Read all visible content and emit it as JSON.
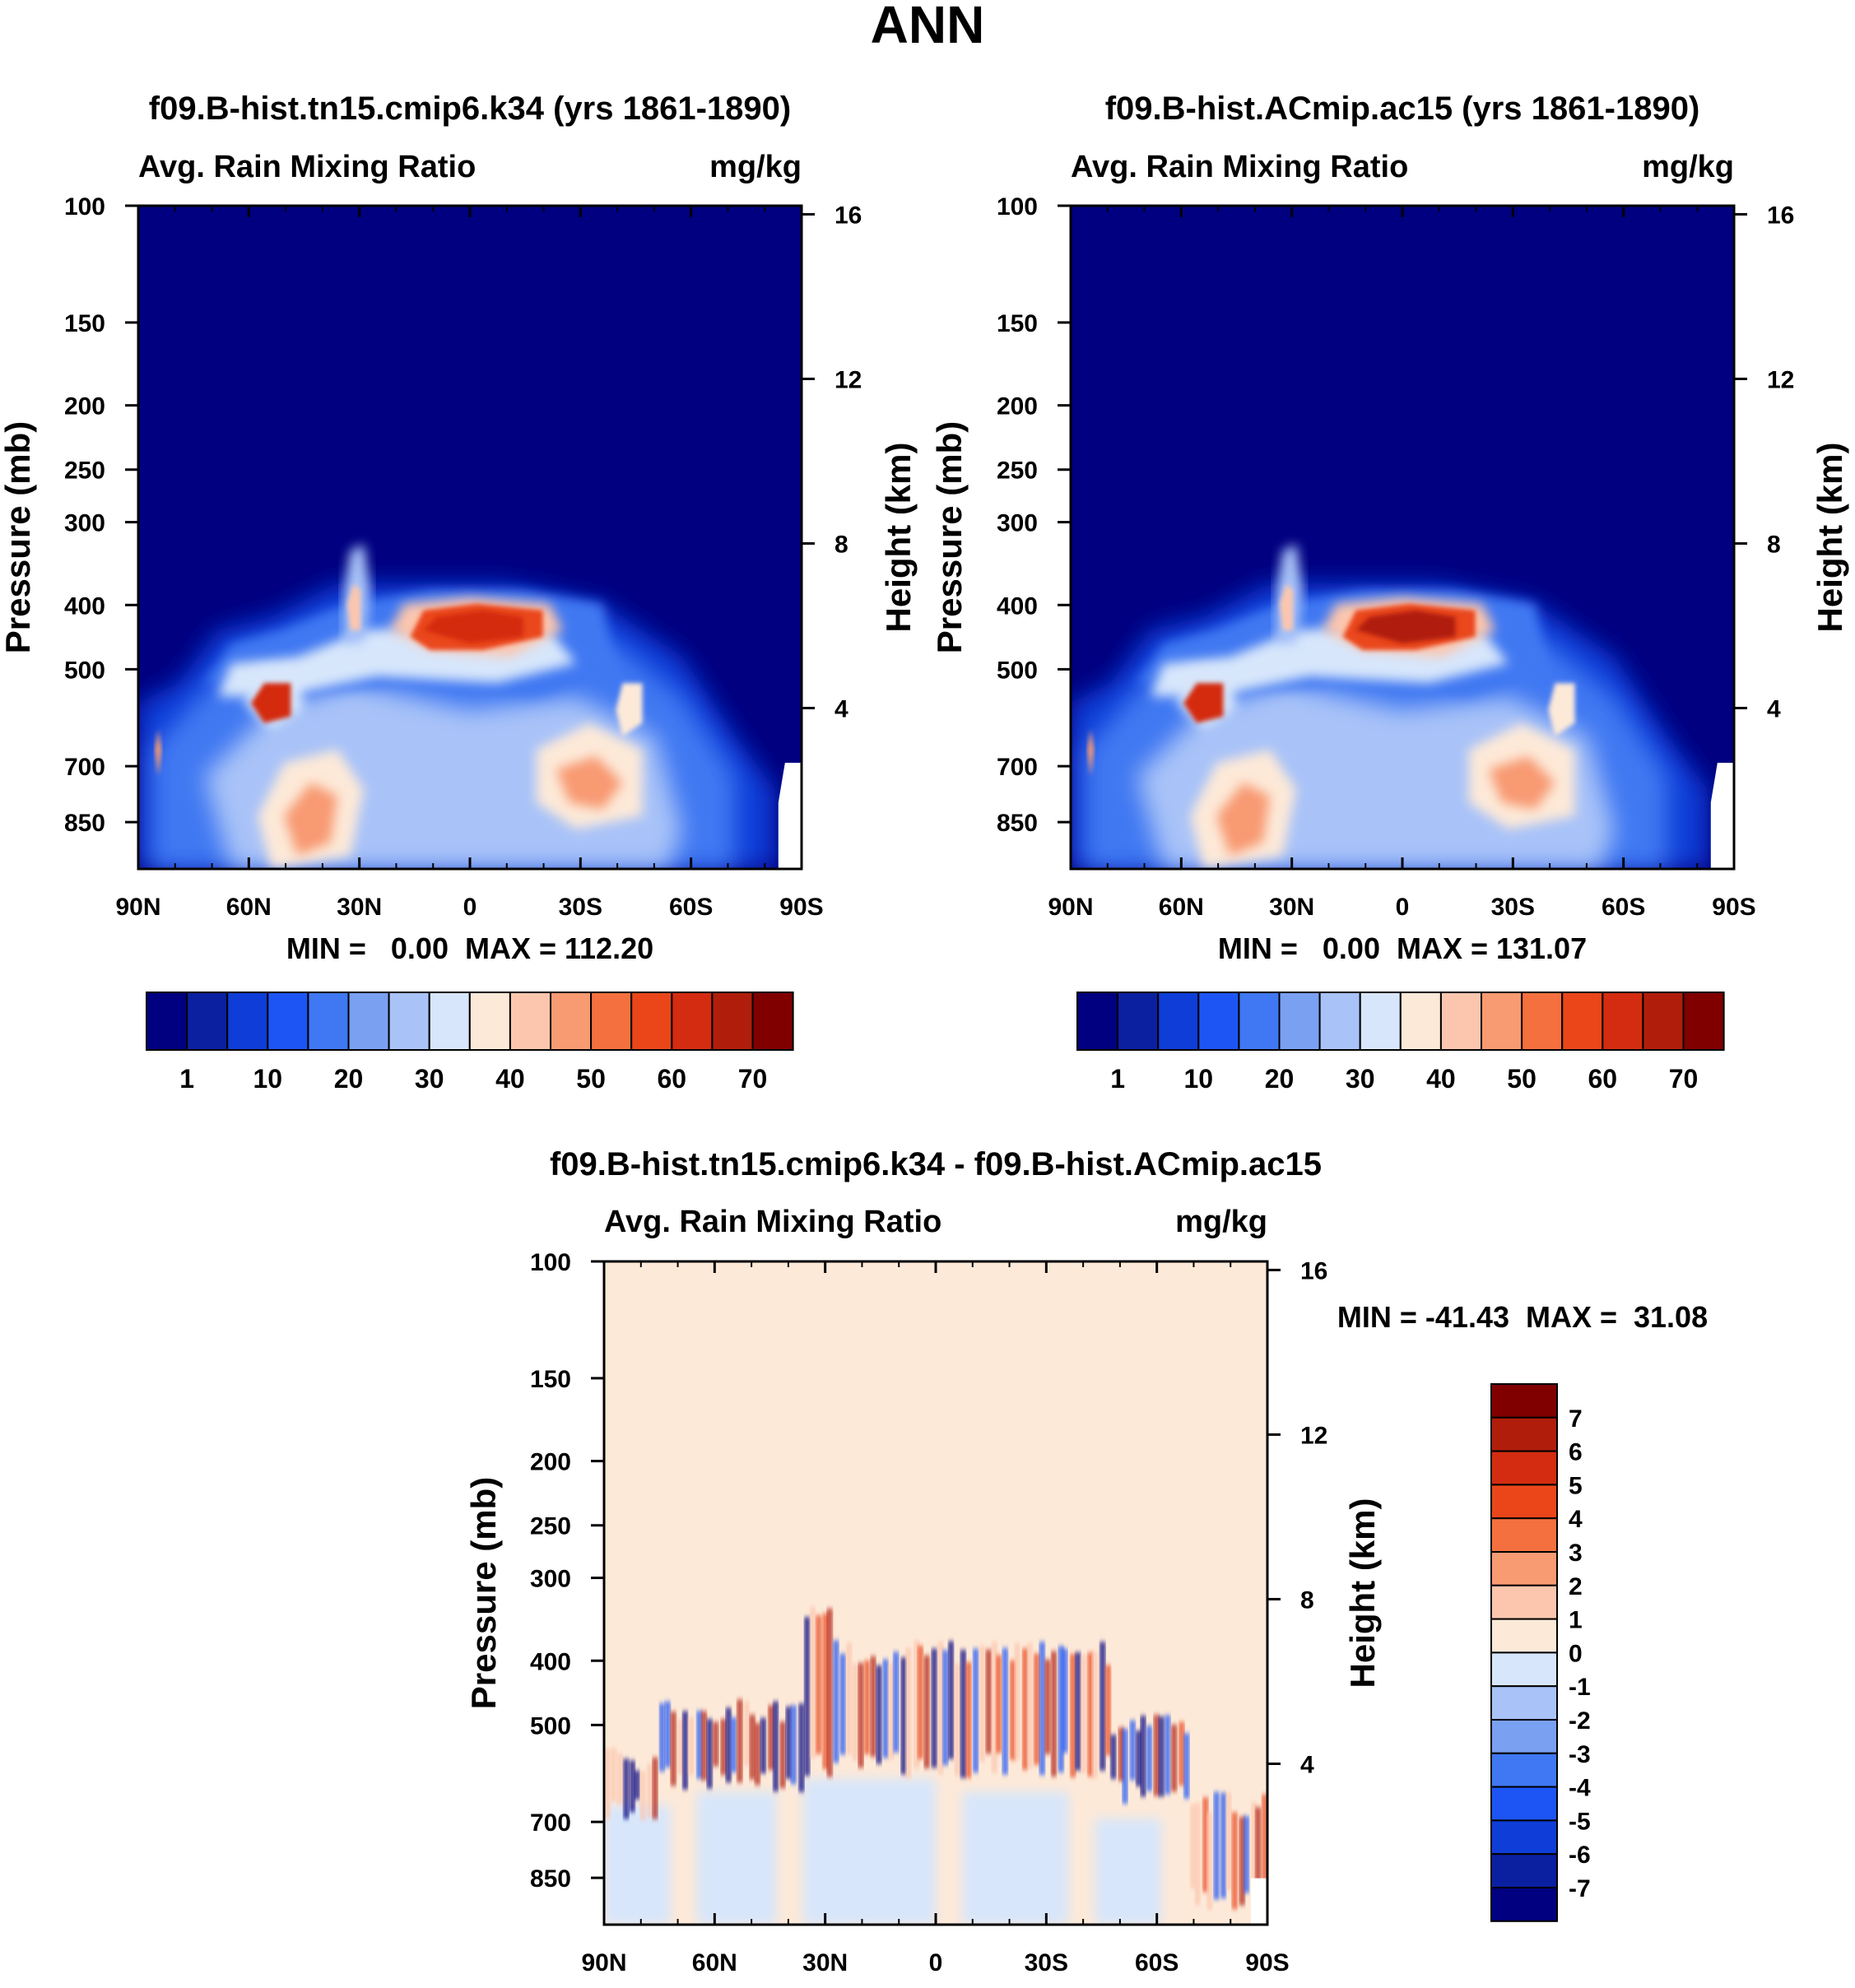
{
  "page_title": "ANN",
  "colors": {
    "ctrl_scale": [
      "#000080",
      "#0a20a0",
      "#0f3dd8",
      "#1d55f5",
      "#3f78f2",
      "#7aa0f2",
      "#a9c3f8",
      "#d7e6fb",
      "#fde9d8",
      "#fcc6ae",
      "#f89a72",
      "#f4703e",
      "#ea461a",
      "#d42c10",
      "#b01e0b",
      "#800000"
    ],
    "diff_scale": [
      "#000080",
      "#0a20a0",
      "#0f3dd8",
      "#1d55f5",
      "#3f78f2",
      "#7aa0f2",
      "#a9c3f8",
      "#d7e6fb",
      "#fde9d8",
      "#fcc6ae",
      "#f89a72",
      "#f4703e",
      "#ea461a",
      "#d42c10",
      "#b01e0b",
      "#800000"
    ]
  },
  "chart_data": [
    {
      "type": "heatmap",
      "id": "panel1",
      "title": "f09.B-hist.tn15.cmip6.k34 (yrs 1861-1890)",
      "left_string": "Avg. Rain Mixing Ratio",
      "right_string": "mg/kg",
      "xlabel": "",
      "ylabel": "Pressure (mb)",
      "ylabel_right": "Height (km)",
      "x_ticks": [
        "90N",
        "60N",
        "30N",
        "0",
        "30S",
        "60S",
        "90S"
      ],
      "y_ticks": [
        "100",
        "150",
        "200",
        "250",
        "300",
        "400",
        "500",
        "700",
        "850"
      ],
      "y_ticks_right": [
        "16",
        "12",
        "8",
        "4"
      ],
      "min_max_text": "MIN =   0.00  MAX = 112.20",
      "min": 0.0,
      "max": 112.2,
      "colorbar_levels": [
        "1",
        "10",
        "20",
        "30",
        "40",
        "50",
        "60",
        "70"
      ]
    },
    {
      "type": "heatmap",
      "id": "panel2",
      "title": "f09.B-hist.ACmip.ac15 (yrs 1861-1890)",
      "left_string": "Avg. Rain Mixing Ratio",
      "right_string": "mg/kg",
      "xlabel": "",
      "ylabel": "Pressure (mb)",
      "ylabel_right": "Height (km)",
      "x_ticks": [
        "90N",
        "60N",
        "30N",
        "0",
        "30S",
        "60S",
        "90S"
      ],
      "y_ticks": [
        "100",
        "150",
        "200",
        "250",
        "300",
        "400",
        "500",
        "700",
        "850"
      ],
      "y_ticks_right": [
        "16",
        "12",
        "8",
        "4"
      ],
      "min_max_text": "MIN =   0.00  MAX = 131.07",
      "min": 0.0,
      "max": 131.07,
      "colorbar_levels": [
        "1",
        "10",
        "20",
        "30",
        "40",
        "50",
        "60",
        "70"
      ]
    },
    {
      "type": "heatmap",
      "id": "panel3",
      "title": "f09.B-hist.tn15.cmip6.k34 - f09.B-hist.ACmip.ac15",
      "left_string": "Avg. Rain Mixing Ratio",
      "right_string": "mg/kg",
      "xlabel": "",
      "ylabel": "Pressure (mb)",
      "ylabel_right": "Height (km)",
      "x_ticks": [
        "90N",
        "60N",
        "30N",
        "0",
        "30S",
        "60S",
        "90S"
      ],
      "y_ticks": [
        "100",
        "150",
        "200",
        "250",
        "300",
        "400",
        "500",
        "700",
        "850"
      ],
      "y_ticks_right": [
        "16",
        "12",
        "8",
        "4"
      ],
      "min_max_text": "MIN = -41.43  MAX =  31.08",
      "min": -41.43,
      "max": 31.08,
      "colorbar_levels": [
        "7",
        "6",
        "5",
        "4",
        "3",
        "2",
        "1",
        "0",
        "-1",
        "-2",
        "-3",
        "-4",
        "-5",
        "-6",
        "-7"
      ]
    }
  ]
}
